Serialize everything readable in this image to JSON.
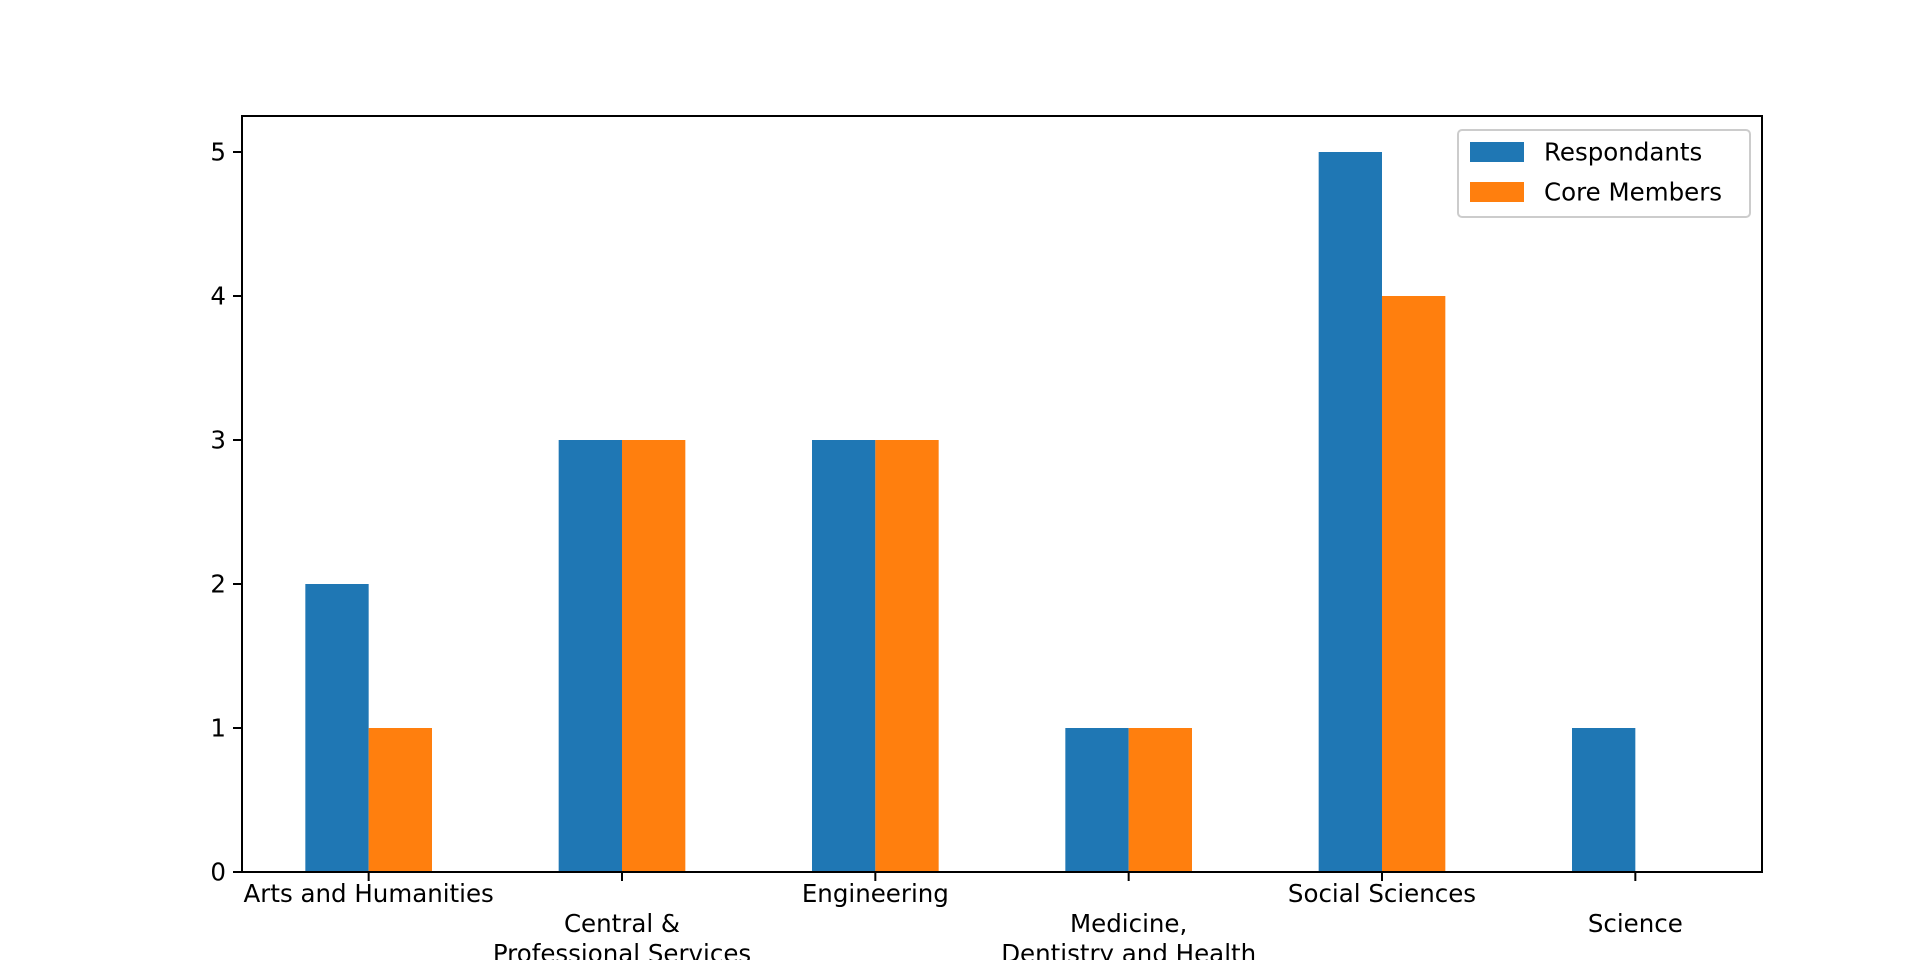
{
  "chart_data": {
    "type": "bar",
    "title": "",
    "xlabel": "",
    "ylabel": "",
    "categories": [
      [
        "Arts and Humanities"
      ],
      [
        "Central &",
        "Professional Services"
      ],
      [
        "Engineering"
      ],
      [
        "Medicine,",
        "Dentistry and Health"
      ],
      [
        "Social Sciences"
      ],
      [
        "Science"
      ]
    ],
    "series": [
      {
        "name": "Respondants",
        "values": [
          2,
          3,
          3,
          1,
          5,
          1
        ],
        "color": "#1f77b4"
      },
      {
        "name": "Core Members",
        "values": [
          1,
          3,
          3,
          1,
          4,
          0
        ],
        "color": "#ff7f0e"
      }
    ],
    "ylim": [
      0,
      5.25
    ],
    "yticks": [
      0,
      1,
      2,
      3,
      4,
      5
    ],
    "legend_position": "top-right",
    "grid": false
  }
}
